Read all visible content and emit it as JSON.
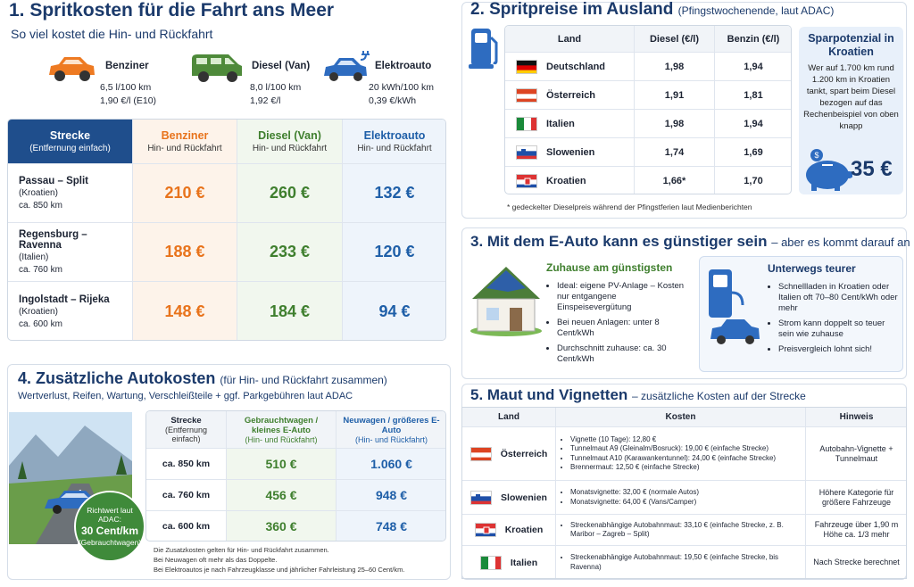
{
  "s1": {
    "title": "1. Spritkosten für die Fahrt ans Meer",
    "subtitle": "So viel kostet die Hin- und Rückfahrt",
    "vehicles": [
      {
        "name": "Benziner",
        "consumption": "6,5 l/100 km",
        "price": "1,90 €/l (E10)"
      },
      {
        "name": "Diesel (Van)",
        "consumption": "8,0 l/100 km",
        "price": "1,92 €/l"
      },
      {
        "name": "Elektroauto",
        "consumption": "20 kWh/100 km",
        "price": "0,39 €/kWh"
      }
    ],
    "table": {
      "header": [
        {
          "title": "Strecke",
          "sub": "(Entfernung einfach)"
        },
        {
          "title": "Benziner",
          "sub": "Hin- und Rückfahrt"
        },
        {
          "title": "Diesel (Van)",
          "sub": "Hin- und Rückfahrt"
        },
        {
          "title": "Elektroauto",
          "sub": "Hin- und Rückfahrt"
        }
      ],
      "rows": [
        {
          "route": "Passau – Split",
          "country": "(Kroatien)",
          "distance": "ca. 850 km",
          "costs": [
            "210 €",
            "260 €",
            "132 €"
          ]
        },
        {
          "route": "Regensburg – Ravenna",
          "country": "(Italien)",
          "distance": "ca. 760 km",
          "costs": [
            "188 €",
            "233 €",
            "120 €"
          ]
        },
        {
          "route": "Ingolstadt – Rijeka",
          "country": "(Kroatien)",
          "distance": "ca. 600 km",
          "costs": [
            "148 €",
            "184 €",
            "94 €"
          ]
        }
      ]
    }
  },
  "s2": {
    "title": "2. Spritpreise im Ausland",
    "note": "(Pfingstwochenende, laut ADAC)",
    "header": [
      "Land",
      "Diesel (€/l)",
      "Benzin (€/l)"
    ],
    "rows": [
      [
        "Deutschland",
        "1,98",
        "1,94"
      ],
      [
        "Österreich",
        "1,91",
        "1,81"
      ],
      [
        "Italien",
        "1,98",
        "1,94"
      ],
      [
        "Slowenien",
        "1,74",
        "1,69"
      ],
      [
        "Kroatien",
        "1,66*",
        "1,70"
      ]
    ],
    "footnote": "* gedeckelter Dieselpreis während der Pfingstferien laut Medienberichten",
    "savings": {
      "title": "Sparpotenzial in Kroatien",
      "text": "Wer auf 1.700 km rund 1.200 km in Kroatien tankt, spart beim Diesel bezogen auf das Rechenbeispiel von oben knapp",
      "amount": "35 €"
    }
  },
  "s3": {
    "title": "3. Mit dem E-Auto kann es günstiger sein",
    "subtitle": "– aber es kommt darauf an",
    "home": {
      "title": "Zuhause am günstigsten",
      "bullets": [
        "Ideal: eigene PV-Anlage – Kosten nur entgangene Einspeisevergütung",
        "Bei neuen Anlagen: unter 8 Cent/kWh",
        "Durchschnitt zuhause: ca. 30 Cent/kWh"
      ]
    },
    "road": {
      "title": "Unterwegs teurer",
      "bullets": [
        "Schnellladen in Kroatien oder Italien oft 70–80 Cent/kWh oder mehr",
        "Strom kann doppelt so teuer sein wie zuhause",
        "Preisvergleich lohnt sich!"
      ]
    }
  },
  "s4": {
    "title": "4. Zusätzliche Autokosten",
    "note": "(für Hin- und Rückfahrt zusammen)",
    "subtitle": "Wertverlust, Reifen, Wartung, Verschleißteile + ggf. Parkgebühren laut ADAC",
    "header": [
      {
        "title": "Strecke",
        "sub": "(Entfernung einfach)"
      },
      {
        "title": "Gebrauchtwagen / kleines E-Auto",
        "sub": "(Hin- und Rückfahrt)"
      },
      {
        "title": "Neuwagen / größeres E-Auto",
        "sub": "(Hin- und Rückfahrt)"
      }
    ],
    "rows": [
      [
        "ca. 850 km",
        "510 €",
        "1.060 €"
      ],
      [
        "ca. 760 km",
        "456 €",
        "948 €"
      ],
      [
        "ca. 600 km",
        "360 €",
        "748 €"
      ]
    ],
    "badge": [
      "Richtwert laut ADAC:",
      "30 Cent/km",
      "(Gebrauchtwagen)"
    ],
    "footnotes": [
      "Die Zusatzkosten gelten für Hin- und Rückfahrt zusammen.",
      "Bei Neuwagen oft mehr als das Doppelte.",
      "Bei Elektroautos je nach Fahrzeugklasse und jährlicher Fahrleistung 25–60 Cent/km."
    ]
  },
  "s5": {
    "title": "5. Maut und Vignetten",
    "subtitle": "– zusätzliche Kosten auf der Strecke",
    "header": [
      "Land",
      "Kosten",
      "Hinweis"
    ],
    "rows": [
      {
        "country": "Österreich",
        "costs": [
          "Vignette (10 Tage): 12,80 €",
          "Tunnelmaut A9 (Gleinalm/Bosruck): 19,00 € (einfache Strecke)",
          "Tunnelmaut A10 (Karawankentunnel): 24,00 € (einfache Strecke)",
          "Brennermaut: 12,50 € (einfache Strecke)"
        ],
        "note": "Autobahn-Vignette + Tunnelmaut"
      },
      {
        "country": "Slowenien",
        "costs": [
          "Monatsvignette: 32,00 € (normale Autos)",
          "Monatsvignette: 64,00 € (Vans/Camper)"
        ],
        "note": "Höhere Kategorie für größere Fahrzeuge"
      },
      {
        "country": "Kroatien",
        "costs": [
          "Streckenabhängige Autobahnmaut: 33,10 € (einfache Strecke, z. B. Maribor – Zagreb – Split)"
        ],
        "note": "Fahrzeuge über 1,90 m Höhe ca. 1/3 mehr"
      },
      {
        "country": "Italien",
        "costs": [
          "Streckenabhängige Autobahnmaut: 19,50 € (einfache Strecke, bis Ravenna)"
        ],
        "note": "Nach Strecke berechnet"
      }
    ]
  }
}
